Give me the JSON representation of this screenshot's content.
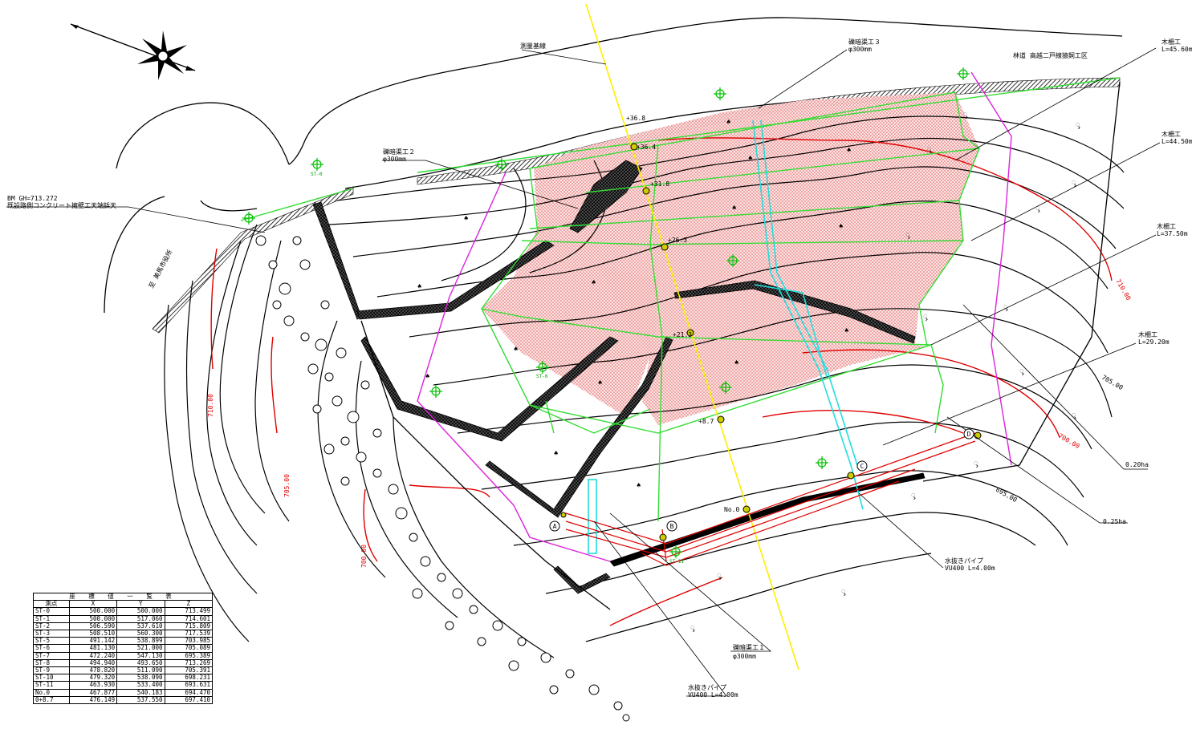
{
  "labels": {
    "survey_baseline": "測量基線",
    "forest_road": "林道 高越二戸線猿飼工区",
    "to_city_office": "至 美馬市役所",
    "bm_line1": "BM GH=713.272",
    "bm_line2": "既設路側コンクリート擁壁工天端鋲天",
    "drain1_title": "礫暗渠工１",
    "drain1_spec": "φ300mm",
    "drain2_title": "礫暗渠工２",
    "drain2_spec": "φ300mm",
    "drain3_title": "礫暗渠工３",
    "drain3_spec": "φ300mm",
    "fence1_title": "木柵工",
    "fence1_len": "L=45.60m",
    "fence2_title": "木柵工",
    "fence2_len": "L=44.50m",
    "fence3_title": "木柵工",
    "fence3_len": "L=37.50m",
    "fence4_title": "木柵工",
    "fence4_len": "L=29.20m",
    "area1": "0.20ha",
    "area2": "0.25ha",
    "pipe1_title": "水抜きパイプ",
    "pipe1_spec": "VU400 L=4.00m",
    "pipe2_title": "水抜きパイプ",
    "pipe2_spec": "VU400 L=4.00m"
  },
  "contours": {
    "c710_left": "710.00",
    "c705_left": "705.00",
    "c700_left": "700.00",
    "c710_right": "710.00",
    "c705_right": "705.00",
    "c700_right": "700.00",
    "c695_right": "695.00"
  },
  "stations": {
    "s36": "+36.8",
    "s35": "+36.4",
    "s31": "+31.8",
    "s26": "+26.3",
    "s21": "+21.3",
    "s8": "+8.7",
    "no0": "No.0"
  },
  "markers": {
    "a": "A",
    "b": "B",
    "c": "C",
    "d": "D",
    "st0": "ST-0",
    "st6": "ST-6",
    "st11": "ST-11"
  },
  "table": {
    "title": "座 標 値 一 覧 表",
    "headers": [
      "測点",
      "X",
      "Y",
      "Z"
    ],
    "rows": [
      [
        "ST-0",
        "500.000",
        "500.000",
        "713.499"
      ],
      [
        "ST-1",
        "500.000",
        "517.060",
        "714.601"
      ],
      [
        "ST-2",
        "506.590",
        "537.610",
        "715.809"
      ],
      [
        "ST-3",
        "508.510",
        "560.300",
        "717.539"
      ],
      [
        "ST-5",
        "491.142",
        "538.899",
        "703.985"
      ],
      [
        "ST-6",
        "481.130",
        "521.000",
        "705.089"
      ],
      [
        "ST-7",
        "472.240",
        "547.130",
        "695.389"
      ],
      [
        "ST-8",
        "494.940",
        "493.650",
        "713.269"
      ],
      [
        "ST-9",
        "478.820",
        "511.090",
        "705.391"
      ],
      [
        "ST-10",
        "479.320",
        "538.090",
        "698.231"
      ],
      [
        "ST-11",
        "463.930",
        "533.400",
        "693.631"
      ],
      [
        "No.0",
        "467.877",
        "540.183",
        "694.470"
      ],
      [
        "0+8.7",
        "476.149",
        "537.550",
        "697.410"
      ]
    ]
  },
  "colors": {
    "treatment_fill": "#f3b5b5",
    "grid_green": "#33dd33",
    "baseline_yellow": "#ffee00",
    "boundary_magenta": "#dd22dd",
    "drain_cyan": "#22dddd",
    "contour_red": "#e00000"
  }
}
